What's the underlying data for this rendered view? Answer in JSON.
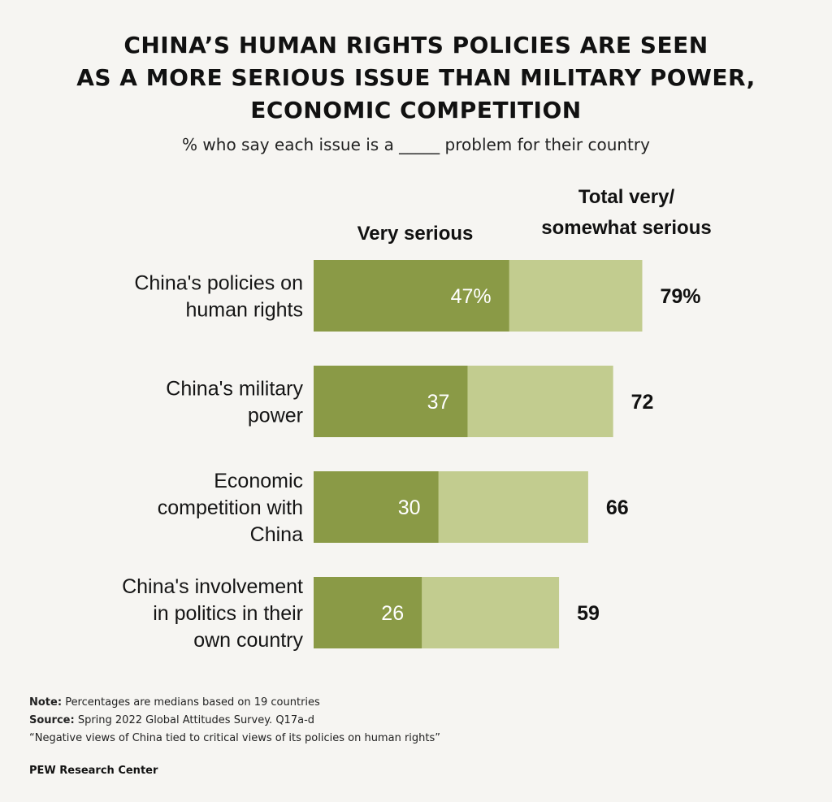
{
  "title_lines": [
    "CHINA’S HUMAN RIGHTS POLICIES ARE SEEN",
    "AS A MORE SERIOUS ISSUE THAN MILITARY POWER,",
    "ECONOMIC COMPETITION"
  ],
  "subtitle": "% who say each issue is a _____ problem for their country",
  "colors": {
    "very_serious": "#8a9a46",
    "total_serious": "#c2cc8f",
    "inner_label": "#ffffff",
    "text": "#111111"
  },
  "chart_data": {
    "type": "bar",
    "orientation": "horizontal",
    "stacked": "overlay",
    "categories": [
      [
        "China's policies on",
        "human rights"
      ],
      [
        "China's military",
        "power"
      ],
      [
        "Economic",
        "competition with",
        "China"
      ],
      [
        "China's involvement",
        "in politics in their",
        "own country"
      ]
    ],
    "series": [
      {
        "name": "Very serious",
        "values": [
          47,
          37,
          30,
          26
        ],
        "labels": [
          "47%",
          "37",
          "30",
          "26"
        ]
      },
      {
        "name": "Total very/ somewhat serious",
        "name_lines": [
          "Total very/",
          "somewhat serious"
        ],
        "values": [
          79,
          72,
          66,
          59
        ],
        "labels": [
          "79%",
          "72",
          "66",
          "59"
        ]
      }
    ],
    "xlim": [
      0,
      100
    ]
  },
  "footer": {
    "note_label": "Note:",
    "note_text": "Percentages are medians based on 19 countries",
    "source_label": "Source:",
    "source_text": "Spring 2022 Global Attitudes Survey. Q17a-d",
    "report_title": "“Negative views of China tied to critical views of its policies on human rights”",
    "org": "PEW Research Center"
  }
}
